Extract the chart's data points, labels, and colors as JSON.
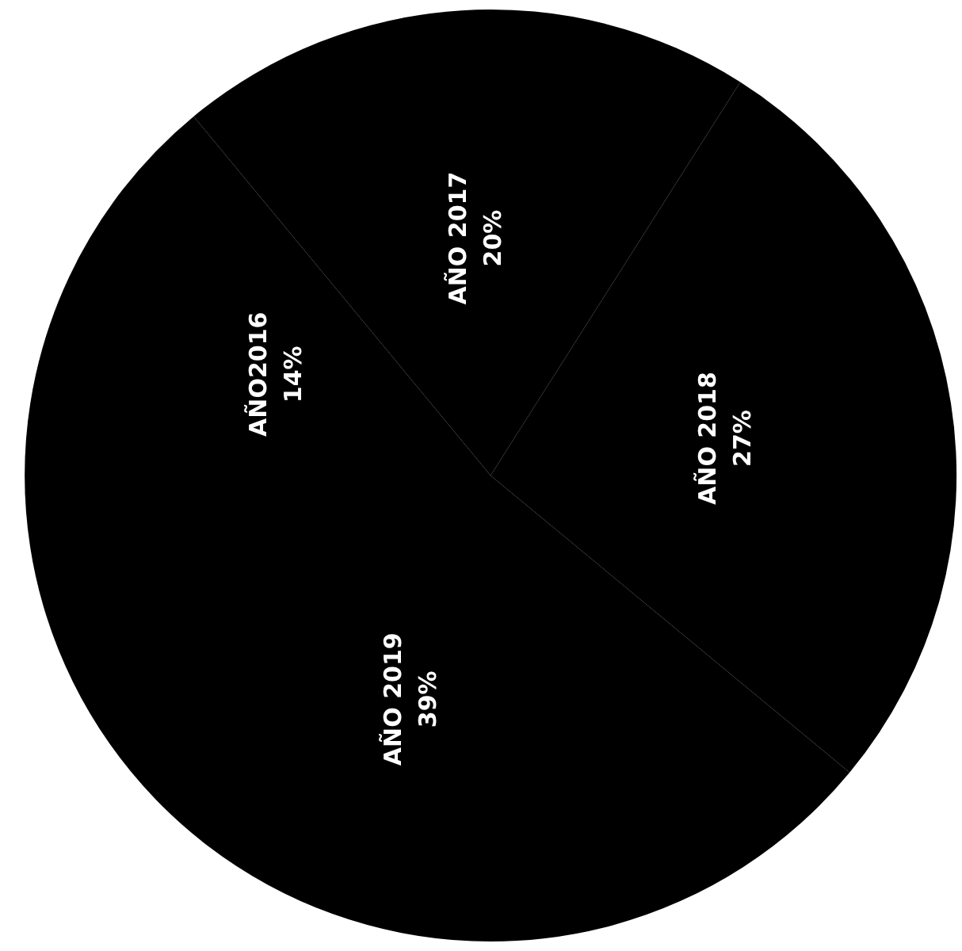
{
  "chart_data": {
    "type": "pie",
    "categories": [
      "AÑO2016",
      "AÑO 2017",
      "AÑO 2018",
      "AÑO 2019"
    ],
    "values": [
      14,
      20,
      27,
      39
    ],
    "value_labels": [
      "14%",
      "20%",
      "27%",
      "39%"
    ],
    "colors": [
      "#000000",
      "#000000",
      "#000000",
      "#000000"
    ],
    "legend": false
  }
}
